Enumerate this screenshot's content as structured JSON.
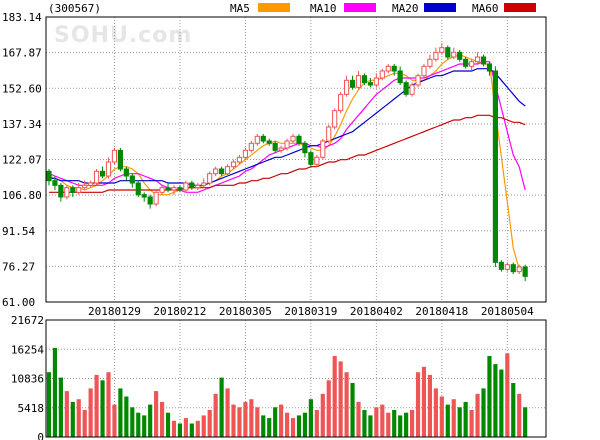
{
  "header": {
    "code": "(300567)",
    "watermark": "SOHU.com",
    "legend": [
      {
        "label": "MA5",
        "color": "#ff9900"
      },
      {
        "label": "MA10",
        "color": "#ff00ff"
      },
      {
        "label": "MA20",
        "color": "#0000cc"
      },
      {
        "label": "MA60",
        "color": "#cc0000"
      }
    ]
  },
  "colors": {
    "up": "#ee5555",
    "down": "#008800",
    "grid": "#999999"
  },
  "chart_data": [
    {
      "type": "candlestick",
      "title": "",
      "y_ticks": [
        "183.14",
        "167.87",
        "152.60",
        "137.34",
        "122.07",
        "106.80",
        "91.54",
        "76.27",
        "61.00"
      ],
      "ylim": [
        61.0,
        183.14
      ],
      "x_tick_labels": [
        "20180129",
        "20180212",
        "20180305",
        "20180319",
        "20180402",
        "20180418",
        "20180504"
      ],
      "x_tick_index": [
        11,
        22,
        33,
        44,
        55,
        66,
        77
      ],
      "candles": [
        [
          117,
          113,
          118,
          111
        ],
        [
          113,
          111,
          115,
          109
        ],
        [
          111,
          106,
          112,
          104
        ],
        [
          106,
          110,
          111,
          105
        ],
        [
          110,
          108,
          111,
          106
        ],
        [
          108,
          110,
          112,
          107
        ],
        [
          110,
          111,
          113,
          109
        ],
        [
          111,
          112,
          113,
          110
        ],
        [
          112,
          117,
          118,
          111
        ],
        [
          117,
          115,
          119,
          114
        ],
        [
          115,
          121,
          123,
          114
        ],
        [
          121,
          126,
          127,
          120
        ],
        [
          126,
          118,
          127,
          117
        ],
        [
          118,
          115,
          119,
          113
        ],
        [
          115,
          112,
          116,
          110
        ],
        [
          112,
          107,
          113,
          106
        ],
        [
          107,
          106,
          108,
          104
        ],
        [
          106,
          103,
          107,
          101
        ],
        [
          103,
          108,
          109,
          102
        ],
        [
          108,
          110,
          111,
          107
        ],
        [
          110,
          109,
          112,
          108
        ],
        [
          109,
          110,
          111,
          107
        ],
        [
          110,
          109,
          111,
          108
        ],
        [
          109,
          112,
          113,
          108
        ],
        [
          112,
          110,
          113,
          109
        ],
        [
          110,
          111,
          112,
          109
        ],
        [
          111,
          112,
          114,
          110
        ],
        [
          112,
          116,
          117,
          111
        ],
        [
          116,
          118,
          119,
          115
        ],
        [
          118,
          116,
          119,
          115
        ],
        [
          116,
          119,
          120,
          115
        ],
        [
          119,
          121,
          122,
          118
        ],
        [
          121,
          123,
          124,
          120
        ],
        [
          123,
          126,
          127,
          122
        ],
        [
          126,
          129,
          130,
          125
        ],
        [
          129,
          132,
          133,
          128
        ],
        [
          132,
          130,
          133,
          129
        ],
        [
          130,
          129,
          131,
          128
        ],
        [
          129,
          126,
          130,
          125
        ],
        [
          126,
          127,
          128,
          125
        ],
        [
          127,
          130,
          131,
          126
        ],
        [
          130,
          132,
          133,
          129
        ],
        [
          132,
          129,
          133,
          128
        ],
        [
          129,
          125,
          130,
          123
        ],
        [
          125,
          120,
          126,
          119
        ],
        [
          120,
          123,
          124,
          119
        ],
        [
          123,
          130,
          131,
          122
        ],
        [
          130,
          136,
          137,
          129
        ],
        [
          136,
          143,
          144,
          135
        ],
        [
          143,
          150,
          151,
          142
        ],
        [
          150,
          156,
          158,
          149
        ],
        [
          156,
          153,
          158,
          152
        ],
        [
          153,
          158,
          160,
          152
        ],
        [
          158,
          155,
          159,
          154
        ],
        [
          155,
          154,
          157,
          153
        ],
        [
          154,
          157,
          159,
          153
        ],
        [
          157,
          160,
          161,
          156
        ],
        [
          160,
          162,
          163,
          159
        ],
        [
          162,
          160,
          163,
          158
        ],
        [
          160,
          155,
          162,
          154
        ],
        [
          155,
          150,
          156,
          149
        ],
        [
          150,
          154,
          155,
          149
        ],
        [
          154,
          158,
          159,
          153
        ],
        [
          158,
          162,
          163,
          157
        ],
        [
          162,
          165,
          167,
          161
        ],
        [
          165,
          168,
          170,
          164
        ],
        [
          168,
          170,
          172,
          167
        ],
        [
          170,
          166,
          171,
          165
        ],
        [
          166,
          168,
          170,
          165
        ],
        [
          168,
          165,
          169,
          164
        ],
        [
          165,
          162,
          166,
          161
        ],
        [
          162,
          164,
          165,
          160
        ],
        [
          164,
          166,
          168,
          163
        ],
        [
          166,
          163,
          167,
          162
        ],
        [
          163,
          160,
          164,
          158
        ],
        [
          160,
          78,
          162,
          76
        ],
        [
          78,
          75,
          79,
          74
        ],
        [
          75,
          77,
          78,
          74
        ],
        [
          77,
          74,
          78,
          73
        ],
        [
          74,
          76,
          77,
          73
        ],
        [
          76,
          72,
          77,
          70
        ]
      ],
      "ma": {
        "MA5": [
          115,
          114,
          113,
          111,
          110,
          110,
          109,
          110,
          111,
          113,
          115,
          118,
          119,
          119,
          118,
          116,
          112,
          109,
          107,
          107,
          107,
          108,
          109,
          110,
          110,
          110,
          111,
          112,
          113,
          115,
          116,
          118,
          120,
          122,
          124,
          126,
          128,
          129,
          130,
          129,
          129,
          129,
          129,
          128,
          127,
          126,
          126,
          128,
          132,
          137,
          143,
          148,
          152,
          155,
          156,
          156,
          157,
          158,
          159,
          159,
          158,
          156,
          156,
          156,
          158,
          160,
          163,
          165,
          166,
          167,
          166,
          165,
          164,
          163,
          163,
          143,
          123,
          104,
          84,
          75,
          75
        ],
        "MA10": [
          116,
          115,
          114,
          113,
          112,
          111,
          111,
          111,
          111,
          111,
          112,
          114,
          115,
          116,
          116,
          116,
          115,
          114,
          113,
          111,
          110,
          109,
          109,
          108,
          108,
          108,
          109,
          110,
          111,
          112,
          113,
          114,
          115,
          117,
          118,
          120,
          122,
          124,
          125,
          126,
          127,
          128,
          129,
          129,
          128,
          128,
          127,
          128,
          129,
          131,
          135,
          138,
          141,
          144,
          147,
          150,
          152,
          154,
          156,
          157,
          157,
          157,
          157,
          157,
          158,
          159,
          160,
          161,
          162,
          163,
          163,
          163,
          163,
          164,
          164,
          154,
          144,
          134,
          124,
          119,
          109
        ],
        "MA20": [
          114,
          114,
          113,
          113,
          113,
          113,
          112,
          112,
          112,
          112,
          112,
          112,
          113,
          113,
          113,
          113,
          113,
          113,
          113,
          113,
          112,
          112,
          112,
          112,
          111,
          111,
          111,
          112,
          113,
          114,
          115,
          116,
          117,
          118,
          119,
          120,
          121,
          122,
          123,
          123,
          124,
          125,
          126,
          127,
          128,
          128,
          129,
          130,
          131,
          132,
          133,
          134,
          136,
          138,
          140,
          142,
          144,
          146,
          148,
          150,
          152,
          154,
          155,
          156,
          157,
          158,
          158,
          159,
          160,
          160,
          160,
          160,
          161,
          161,
          161,
          159,
          156,
          153,
          150,
          147,
          145
        ],
        "MA60": [
          108,
          108,
          108,
          108,
          108,
          108,
          108,
          108,
          108,
          108,
          109,
          109,
          109,
          109,
          109,
          109,
          109,
          109,
          109,
          109,
          109,
          109,
          109,
          110,
          110,
          110,
          110,
          110,
          111,
          111,
          111,
          111,
          112,
          112,
          113,
          113,
          114,
          114,
          115,
          116,
          116,
          117,
          118,
          118,
          119,
          119,
          120,
          121,
          121,
          122,
          122,
          123,
          124,
          124,
          125,
          126,
          127,
          128,
          129,
          130,
          131,
          132,
          133,
          134,
          135,
          136,
          137,
          138,
          139,
          139,
          140,
          140,
          141,
          141,
          141,
          140,
          140,
          139,
          138,
          138,
          137
        ]
      }
    },
    {
      "type": "bar",
      "title": "",
      "y_ticks": [
        "21672",
        "16254",
        "10836",
        "5418",
        "0"
      ],
      "ylim": [
        0,
        21672
      ],
      "volumes": [
        12000,
        16500,
        11000,
        8500,
        6500,
        7000,
        5000,
        9000,
        11500,
        10500,
        12000,
        6000,
        9000,
        7500,
        5500,
        4500,
        4000,
        6000,
        8500,
        6500,
        4500,
        3000,
        2500,
        3500,
        2500,
        3000,
        4000,
        5000,
        8000,
        11000,
        9000,
        6000,
        5500,
        6500,
        7000,
        5500,
        4000,
        3500,
        5500,
        6000,
        4500,
        3500,
        4000,
        4500,
        7000,
        5000,
        8000,
        10500,
        15000,
        14000,
        12000,
        10000,
        6500,
        5000,
        4000,
        5500,
        6000,
        4500,
        5000,
        4000,
        4500,
        5000,
        12000,
        13000,
        11500,
        9000,
        7500,
        6000,
        7000,
        5500,
        6500,
        5000,
        8000,
        9000,
        15000,
        13500,
        12500,
        15500,
        10000,
        8000,
        5500
      ]
    }
  ]
}
